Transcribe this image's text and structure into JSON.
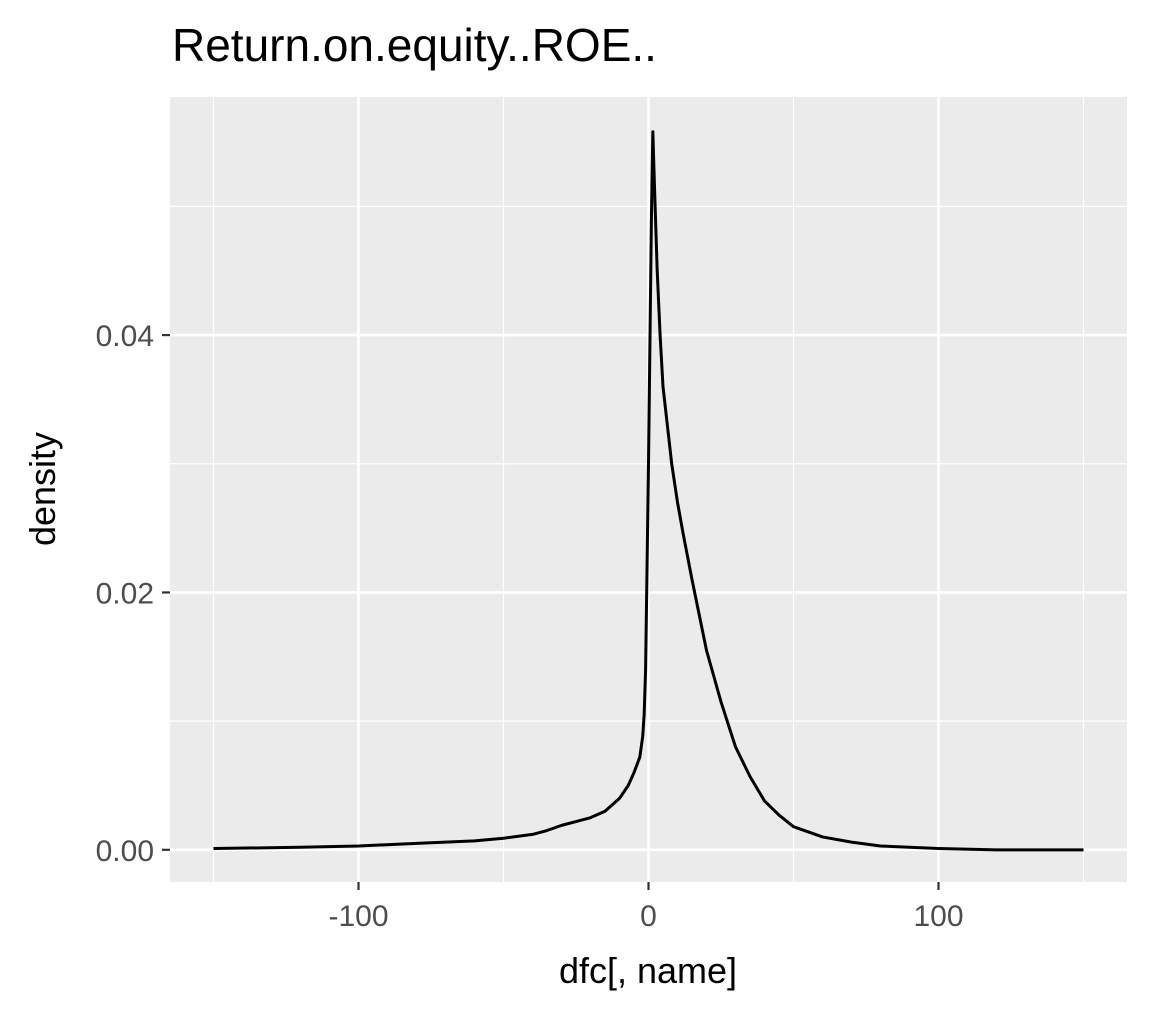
{
  "chart_data": {
    "type": "line",
    "title": "Return.on.equity..ROE..",
    "xlabel": "dfc[, name]",
    "ylabel": "density",
    "xlim": [
      -165,
      165
    ],
    "ylim": [
      -0.0025,
      0.0585
    ],
    "x_ticks": [
      -100,
      0,
      100
    ],
    "x_tick_labels": [
      "-100",
      "0",
      "100"
    ],
    "y_ticks": [
      0.0,
      0.02,
      0.04
    ],
    "y_tick_labels": [
      "0.00",
      "0.02",
      "0.04"
    ],
    "grid": true,
    "background": "#ebebeb",
    "grid_color": "#ffffff",
    "line_color": "#000000",
    "series": [
      {
        "x": [
          -150,
          -120,
          -100,
          -80,
          -60,
          -50,
          -40,
          -35,
          -30,
          -25,
          -20,
          -15,
          -10,
          -7,
          -5,
          -3,
          -2,
          -1.5,
          -1,
          0,
          1,
          1.5,
          2,
          3,
          4,
          5,
          6,
          8,
          10,
          12,
          15,
          20,
          25,
          30,
          35,
          40,
          45,
          50,
          60,
          70,
          80,
          100,
          120,
          150
        ],
        "y": [
          0.0001,
          0.0002,
          0.0003,
          0.0005,
          0.0007,
          0.0009,
          0.0012,
          0.0015,
          0.0019,
          0.0022,
          0.0025,
          0.003,
          0.004,
          0.005,
          0.006,
          0.0072,
          0.0088,
          0.0105,
          0.014,
          0.03,
          0.049,
          0.0558,
          0.052,
          0.045,
          0.04,
          0.036,
          0.034,
          0.03,
          0.027,
          0.0245,
          0.021,
          0.0155,
          0.0115,
          0.008,
          0.0057,
          0.0038,
          0.0027,
          0.0018,
          0.001,
          0.0006,
          0.0003,
          0.0001,
          0.0,
          0.0
        ]
      }
    ]
  }
}
